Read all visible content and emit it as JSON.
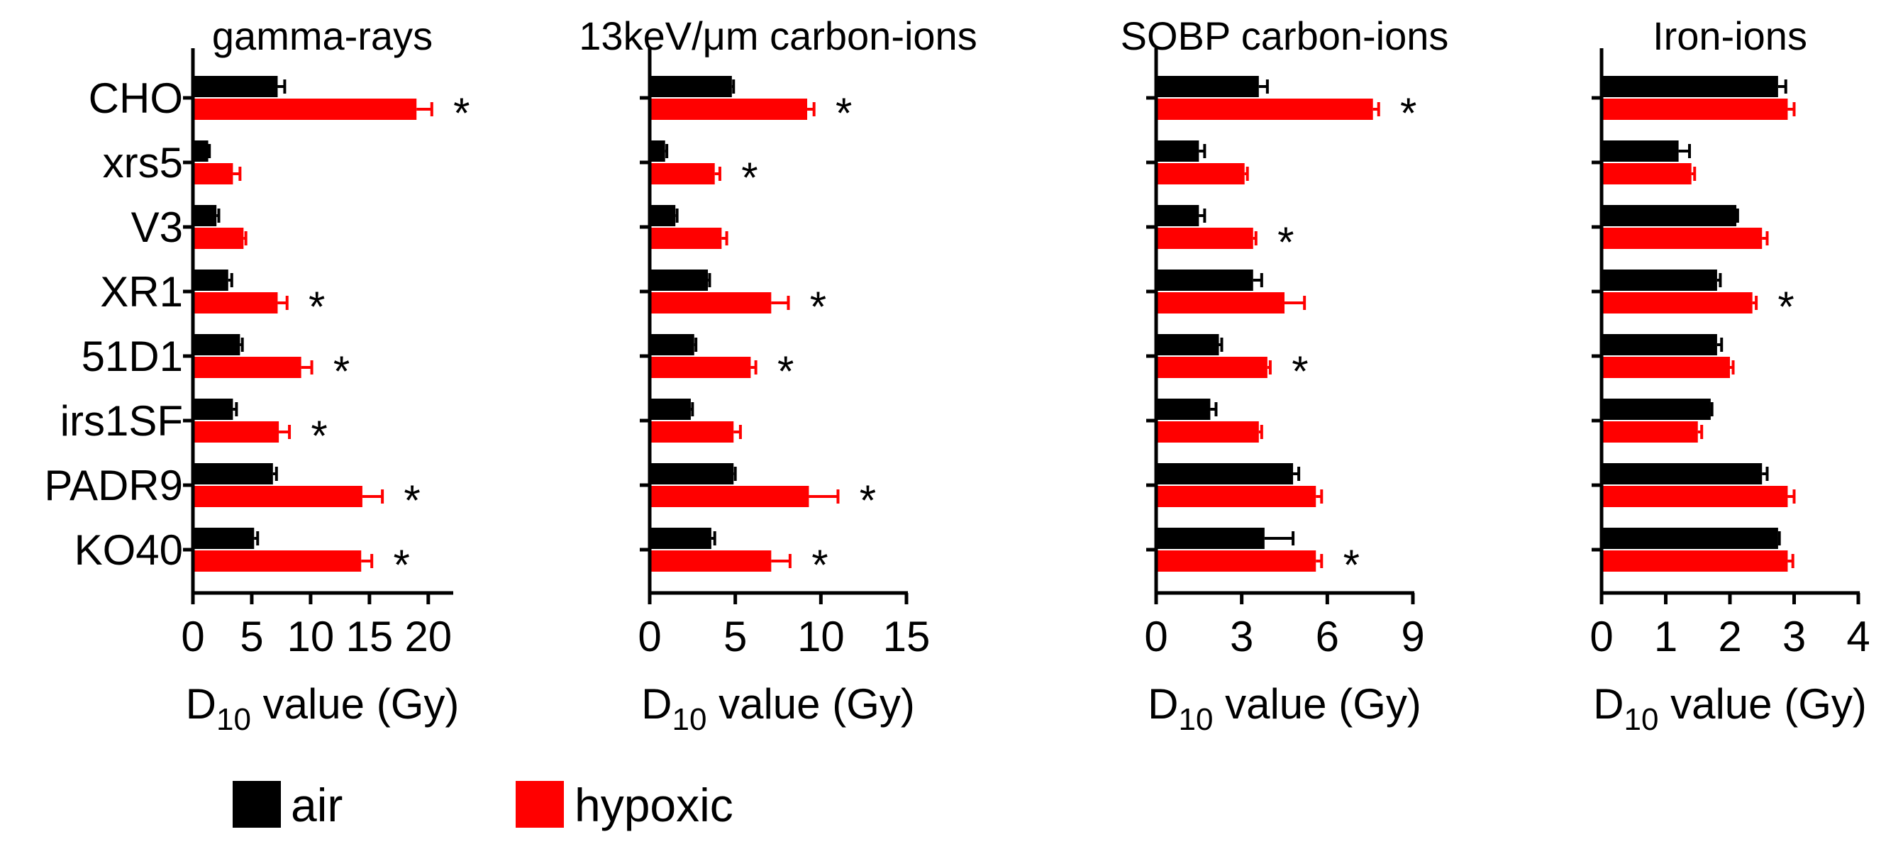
{
  "chart_data": [
    {
      "type": "bar",
      "orientation": "horizontal",
      "title": "gamma-rays",
      "xlabel": "D10 value (Gy)",
      "xlabel_main": "D",
      "xlabel_sub": "10",
      "xlabel_rest": " value (Gy)",
      "ylabel": "",
      "xlim": [
        0,
        22
      ],
      "xticks": [
        0,
        5,
        10,
        15,
        20
      ],
      "xtick_labels": [
        "0",
        "5",
        "10",
        "15",
        "20"
      ],
      "categories": [
        "CHO",
        "xrs5",
        "V3",
        "XR1",
        "51D1",
        "irs1SF",
        "PADR9",
        "KO40"
      ],
      "series": [
        {
          "name": "air",
          "values": [
            7.2,
            1.3,
            2.0,
            3.0,
            4.0,
            3.4,
            6.8,
            5.2
          ],
          "errors": [
            0.6,
            0.1,
            0.2,
            0.3,
            0.2,
            0.3,
            0.3,
            0.3
          ]
        },
        {
          "name": "hypoxic",
          "values": [
            19.0,
            3.4,
            4.3,
            7.2,
            9.2,
            7.3,
            14.4,
            14.3
          ],
          "errors": [
            1.3,
            0.6,
            0.2,
            0.8,
            0.9,
            0.9,
            1.7,
            0.9
          ]
        }
      ],
      "significance": [
        "*",
        "",
        "",
        "*",
        "*",
        "*",
        "*",
        "*"
      ]
    },
    {
      "type": "bar",
      "orientation": "horizontal",
      "title": "13keV/μm carbon-ions",
      "xlabel": "D10 value (Gy)",
      "xlabel_main": "D",
      "xlabel_sub": "10",
      "xlabel_rest": " value (Gy)",
      "ylabel": "",
      "xlim": [
        0,
        15
      ],
      "xticks": [
        0,
        5,
        10,
        15
      ],
      "xtick_labels": [
        "0",
        "5",
        "10",
        "15"
      ],
      "categories": [
        "CHO",
        "xrs5",
        "V3",
        "XR1",
        "51D1",
        "irs1SF",
        "PADR9",
        "KO40"
      ],
      "series": [
        {
          "name": "air",
          "values": [
            4.8,
            0.9,
            1.5,
            3.4,
            2.6,
            2.4,
            4.9,
            3.6
          ],
          "errors": [
            0.1,
            0.1,
            0.1,
            0.1,
            0.1,
            0.1,
            0.1,
            0.2
          ]
        },
        {
          "name": "hypoxic",
          "values": [
            9.2,
            3.8,
            4.2,
            7.1,
            5.9,
            4.9,
            9.3,
            7.1
          ],
          "errors": [
            0.4,
            0.3,
            0.3,
            1.0,
            0.3,
            0.4,
            1.7,
            1.1
          ]
        }
      ],
      "significance": [
        "*",
        "*",
        "",
        "*",
        "*",
        "",
        "*",
        "*"
      ]
    },
    {
      "type": "bar",
      "orientation": "horizontal",
      "title": "SOBP carbon-ions",
      "xlabel": "D10 value (Gy)",
      "xlabel_main": "D",
      "xlabel_sub": "10",
      "xlabel_rest": " value (Gy)",
      "ylabel": "",
      "xlim": [
        0,
        9
      ],
      "xticks": [
        0,
        3,
        6,
        9
      ],
      "xtick_labels": [
        "0",
        "3",
        "6",
        "9"
      ],
      "categories": [
        "CHO",
        "xrs5",
        "V3",
        "XR1",
        "51D1",
        "irs1SF",
        "PADR9",
        "KO40"
      ],
      "series": [
        {
          "name": "air",
          "values": [
            3.6,
            1.5,
            1.5,
            3.4,
            2.2,
            1.9,
            4.8,
            3.8
          ],
          "errors": [
            0.3,
            0.2,
            0.2,
            0.3,
            0.1,
            0.2,
            0.2,
            1.0
          ]
        },
        {
          "name": "hypoxic",
          "values": [
            7.6,
            3.1,
            3.4,
            4.5,
            3.9,
            3.6,
            5.6,
            5.6
          ],
          "errors": [
            0.2,
            0.1,
            0.1,
            0.7,
            0.1,
            0.1,
            0.2,
            0.2
          ]
        }
      ],
      "significance": [
        "*",
        "",
        "*",
        "",
        "*",
        "",
        "",
        "*"
      ]
    },
    {
      "type": "bar",
      "orientation": "horizontal",
      "title": "Iron-ions",
      "xlabel": "D10 value (Gy)",
      "xlabel_main": "D",
      "xlabel_sub": "10",
      "xlabel_rest": " value (Gy)",
      "ylabel": "",
      "xlim": [
        0,
        4
      ],
      "xticks": [
        0,
        1,
        2,
        3,
        4
      ],
      "xtick_labels": [
        "0",
        "1",
        "2",
        "3",
        "4"
      ],
      "categories": [
        "CHO",
        "xrs5",
        "V3",
        "XR1",
        "51D1",
        "irs1SF",
        "PADR9",
        "KO40"
      ],
      "series": [
        {
          "name": "air",
          "values": [
            2.75,
            1.2,
            2.1,
            1.8,
            1.8,
            1.7,
            2.5,
            2.75
          ],
          "errors": [
            0.12,
            0.17,
            0.02,
            0.05,
            0.07,
            0.02,
            0.08,
            0.02
          ]
        },
        {
          "name": "hypoxic",
          "values": [
            2.9,
            1.4,
            2.5,
            2.35,
            2.0,
            1.5,
            2.9,
            2.9
          ],
          "errors": [
            0.1,
            0.05,
            0.08,
            0.06,
            0.05,
            0.06,
            0.1,
            0.08
          ]
        }
      ],
      "significance": [
        "",
        "",
        "",
        "*",
        "",
        "",
        "",
        ""
      ]
    }
  ],
  "legend": [
    {
      "label": "air",
      "color": "#000000"
    },
    {
      "label": "hypoxic",
      "color": "#ff0000"
    }
  ],
  "colors": {
    "air": "#000000",
    "hypoxic": "#ff0000",
    "axis": "#000000"
  }
}
